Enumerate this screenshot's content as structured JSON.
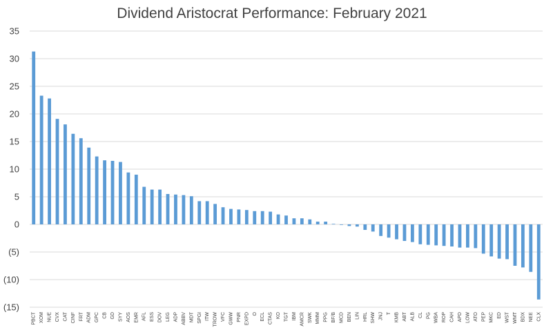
{
  "chart_data": {
    "type": "bar",
    "title": "Dividend Aristocrat Performance: February 2021",
    "xlabel": "",
    "ylabel": "",
    "ylim": [
      -15,
      35
    ],
    "yticks": [
      35,
      30,
      25,
      20,
      15,
      10,
      5,
      0,
      -5,
      -10,
      -15
    ],
    "ytick_labels": [
      "35",
      "30",
      "25",
      "20",
      "15",
      "10",
      "5",
      "0",
      "(5)",
      "(10)",
      "(15)"
    ],
    "grid": true,
    "legend": "none",
    "bar_color": "#5b9bd5",
    "grid_color": "#d9d9d9",
    "categories": [
      "PBCT",
      "XOM",
      "NUE",
      "CVX",
      "CAT",
      "CINF",
      "FRT",
      "ADM",
      "GPC",
      "CB",
      "GD",
      "SYY",
      "AOS",
      "EMR",
      "AFL",
      "ESS",
      "DOV",
      "LEG",
      "ADP",
      "ABBV",
      "MDT",
      "SPGI",
      "ITW",
      "TROW",
      "VFC",
      "GWW",
      "PNR",
      "EXPD",
      "O",
      "ECL",
      "CTAS",
      "KO",
      "TGT",
      "IBM",
      "AMCR",
      "SWK",
      "MMM",
      "PPG",
      "BF/B",
      "MCD",
      "BEN",
      "LIN",
      "HRL",
      "SHW",
      "JNJ",
      "T",
      "KMB",
      "ABT",
      "ALB",
      "CL",
      "PG",
      "WBA",
      "ROP",
      "CAH",
      "APD",
      "LOW",
      "ATO",
      "PEP",
      "MKC",
      "ED",
      "WST",
      "WMT",
      "BDX",
      "NEE",
      "CLX"
    ],
    "values": [
      31.3,
      23.3,
      22.8,
      19.1,
      18.1,
      16.4,
      15.6,
      13.9,
      12.3,
      11.6,
      11.5,
      11.3,
      9.4,
      9.0,
      6.8,
      6.3,
      6.3,
      5.5,
      5.4,
      5.3,
      5.1,
      4.2,
      4.2,
      3.7,
      3.1,
      2.8,
      2.7,
      2.6,
      2.4,
      2.4,
      2.3,
      1.8,
      1.6,
      1.1,
      1.1,
      0.9,
      0.5,
      0.5,
      0.1,
      -0.1,
      -0.3,
      -0.4,
      -1.0,
      -1.3,
      -2.1,
      -2.4,
      -2.7,
      -3.0,
      -3.2,
      -3.6,
      -3.7,
      -3.8,
      -3.9,
      -4.0,
      -4.2,
      -4.2,
      -4.3,
      -5.3,
      -5.8,
      -6.2,
      -6.3,
      -7.5,
      -7.8,
      -8.6,
      -13.6
    ]
  }
}
